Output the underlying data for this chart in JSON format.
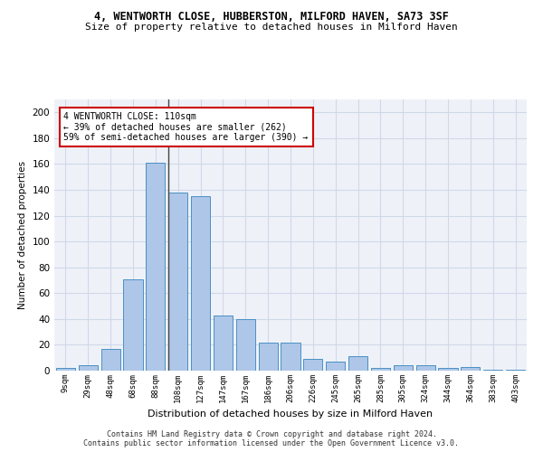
{
  "title1": "4, WENTWORTH CLOSE, HUBBERSTON, MILFORD HAVEN, SA73 3SF",
  "title2": "Size of property relative to detached houses in Milford Haven",
  "xlabel": "Distribution of detached houses by size in Milford Haven",
  "ylabel": "Number of detached properties",
  "categories": [
    "9sqm",
    "29sqm",
    "48sqm",
    "68sqm",
    "88sqm",
    "108sqm",
    "127sqm",
    "147sqm",
    "167sqm",
    "186sqm",
    "206sqm",
    "226sqm",
    "245sqm",
    "265sqm",
    "285sqm",
    "305sqm",
    "324sqm",
    "344sqm",
    "364sqm",
    "383sqm",
    "403sqm"
  ],
  "values": [
    2,
    4,
    17,
    71,
    161,
    138,
    135,
    43,
    40,
    22,
    22,
    9,
    7,
    11,
    2,
    4,
    4,
    2,
    3,
    1,
    1
  ],
  "bar_color": "#aec6e8",
  "bar_edge_color": "#4a90c4",
  "annotation_text": "4 WENTWORTH CLOSE: 110sqm\n← 39% of detached houses are smaller (262)\n59% of semi-detached houses are larger (390) →",
  "annotation_box_color": "#ffffff",
  "annotation_box_edge_color": "#cc0000",
  "grid_color": "#d0d8e8",
  "background_color": "#eef2f8",
  "ylim": [
    0,
    210
  ],
  "yticks": [
    0,
    20,
    40,
    60,
    80,
    100,
    120,
    140,
    160,
    180,
    200
  ],
  "footer1": "Contains HM Land Registry data © Crown copyright and database right 2024.",
  "footer2": "Contains public sector information licensed under the Open Government Licence v3.0."
}
